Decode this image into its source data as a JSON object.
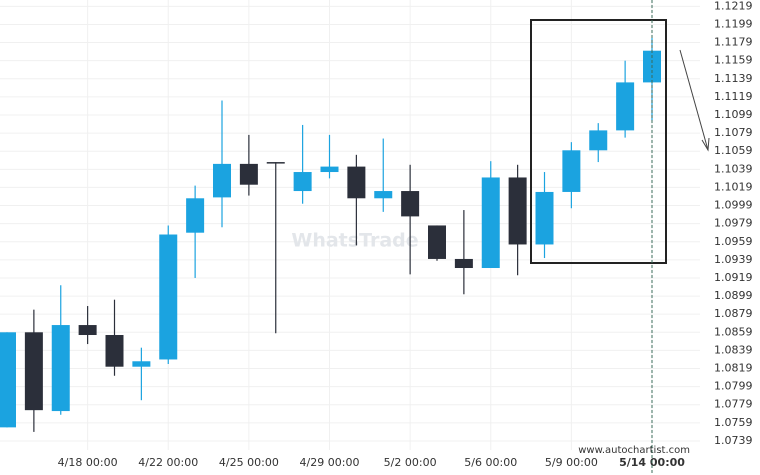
{
  "chart_data": {
    "type": "candlestick",
    "watermark": "WhatsTrade",
    "source": "www.autochartist.com",
    "categories": [
      null,
      null,
      null,
      "4/18 00:00",
      null,
      null,
      "4/22 00:00",
      null,
      null,
      "4/25 00:00",
      null,
      null,
      "4/29 00:00",
      null,
      null,
      "5/2 00:00",
      null,
      null,
      "5/6 00:00",
      null,
      null,
      "5/9 00:00",
      null,
      null,
      "5/14 00:00"
    ],
    "open": [
      1.0754,
      1.0859,
      1.0772,
      1.0867,
      1.0856,
      1.0821,
      1.0829,
      1.0969,
      1.1008,
      1.1045,
      1.1047,
      1.1015,
      1.1036,
      1.1042,
      1.1007,
      1.1015,
      1.0977,
      1.094,
      1.093,
      1.103,
      1.0956,
      1.1014,
      1.106,
      1.1082,
      1.1135
    ],
    "high": [
      1.0859,
      1.0884,
      1.0911,
      1.0888,
      1.0895,
      1.0842,
      1.0977,
      1.1021,
      1.1115,
      1.1077,
      1.1047,
      1.1088,
      1.1077,
      1.1055,
      1.1073,
      1.1044,
      1.0977,
      1.0994,
      1.1048,
      1.1044,
      1.1036,
      1.1069,
      1.109,
      1.1159,
      1.1184
    ],
    "low": [
      1.0754,
      1.0749,
      1.0768,
      1.0846,
      1.0811,
      1.0784,
      1.0824,
      1.0919,
      1.0975,
      1.101,
      1.0858,
      1.1001,
      1.1029,
      1.0955,
      1.0992,
      1.0923,
      1.0938,
      1.0901,
      1.093,
      1.0922,
      1.0941,
      1.0996,
      1.1047,
      1.1074,
      1.1093
    ],
    "close": [
      1.0859,
      1.0773,
      1.0867,
      1.0856,
      1.0821,
      1.0827,
      1.0967,
      1.1007,
      1.1045,
      1.1022,
      1.1046,
      1.1036,
      1.1042,
      1.1007,
      1.1015,
      1.0987,
      1.094,
      1.093,
      1.103,
      1.0956,
      1.1014,
      1.106,
      1.1082,
      1.1135,
      1.117
    ],
    "up_color": "#1ba3e0",
    "down_color": "#2b2f3a",
    "ylim": [
      1.0729,
      1.1226
    ],
    "yticks": [
      1.1219,
      1.1199,
      1.1179,
      1.1159,
      1.1139,
      1.1119,
      1.1099,
      1.1079,
      1.1059,
      1.1039,
      1.1019,
      1.0999,
      1.0979,
      1.0959,
      1.0939,
      1.0919,
      1.0899,
      1.0879,
      1.0859,
      1.0839,
      1.0819,
      1.0799,
      1.0779,
      1.0759,
      1.0739
    ],
    "grid": true
  }
}
